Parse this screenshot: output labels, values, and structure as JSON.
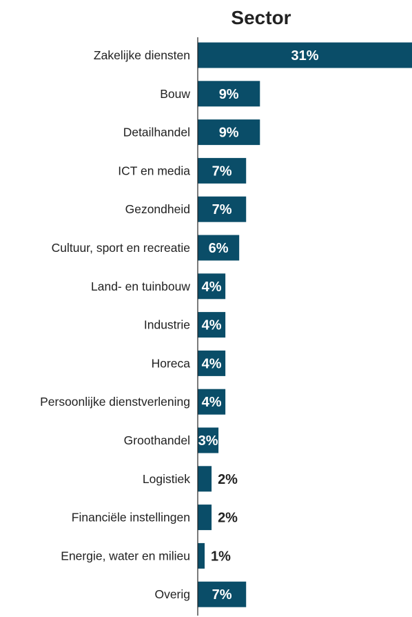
{
  "chart_data": {
    "type": "bar",
    "orientation": "horizontal",
    "title": "Sector",
    "xlabel": "",
    "ylabel": "",
    "value_suffix": "%",
    "grid": false,
    "legend": "none",
    "xlim": [
      0,
      31
    ],
    "categories": [
      "Zakelijke diensten",
      "Bouw",
      "Detailhandel",
      "ICT en media",
      "Gezondheid",
      "Cultuur, sport en recreatie",
      "Land- en tuinbouw",
      "Industrie",
      "Horeca",
      "Persoonlijke dienstverlening",
      "Groothandel",
      "Logistiek",
      "Financiële instellingen",
      "Energie, water en milieu",
      "Overig"
    ],
    "values": [
      31,
      9,
      9,
      7,
      7,
      6,
      4,
      4,
      4,
      4,
      3,
      2,
      2,
      1,
      7
    ],
    "colors": {
      "bar": "#0a4d68",
      "label_inside": "#ffffff",
      "label_outside": "#222222",
      "axis": "#222222"
    }
  }
}
